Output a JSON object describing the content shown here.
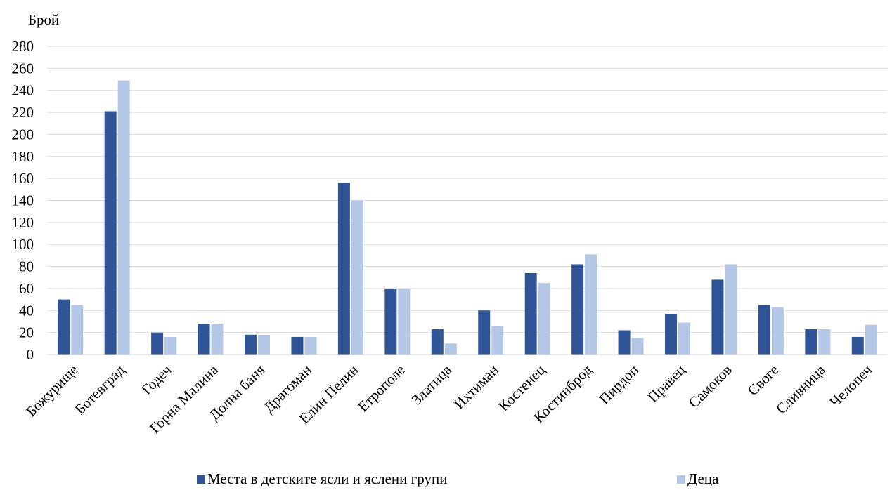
{
  "chart_data": {
    "type": "bar",
    "title": "",
    "ylabel": "Брой",
    "xlabel": "",
    "ylim": [
      0,
      280
    ],
    "y_ticks": [
      0,
      20,
      40,
      60,
      80,
      100,
      120,
      140,
      160,
      180,
      200,
      220,
      240,
      260,
      280
    ],
    "grid": true,
    "legend_position": "bottom",
    "categories": [
      "Божурище",
      "Ботевград",
      "Годеч",
      "Горна Малина",
      "Долна баня",
      "Драгоман",
      "Елин Пелин",
      "Етрополе",
      "Златица",
      "Ихтиман",
      "Костенец",
      "Костинброд",
      "Пирдоп",
      "Правец",
      "Самоков",
      "Своге",
      "Сливница",
      "Челопеч"
    ],
    "series": [
      {
        "name": "Места в детските ясли и яслени групи",
        "color": "#2f5597",
        "values": [
          50,
          221,
          20,
          28,
          18,
          16,
          156,
          60,
          23,
          40,
          74,
          82,
          22,
          37,
          68,
          45,
          23,
          16
        ]
      },
      {
        "name": "Деца",
        "color": "#b4c7e7",
        "values": [
          45,
          249,
          16,
          28,
          18,
          16,
          140,
          60,
          10,
          26,
          65,
          91,
          15,
          29,
          82,
          43,
          23,
          27
        ]
      }
    ]
  }
}
